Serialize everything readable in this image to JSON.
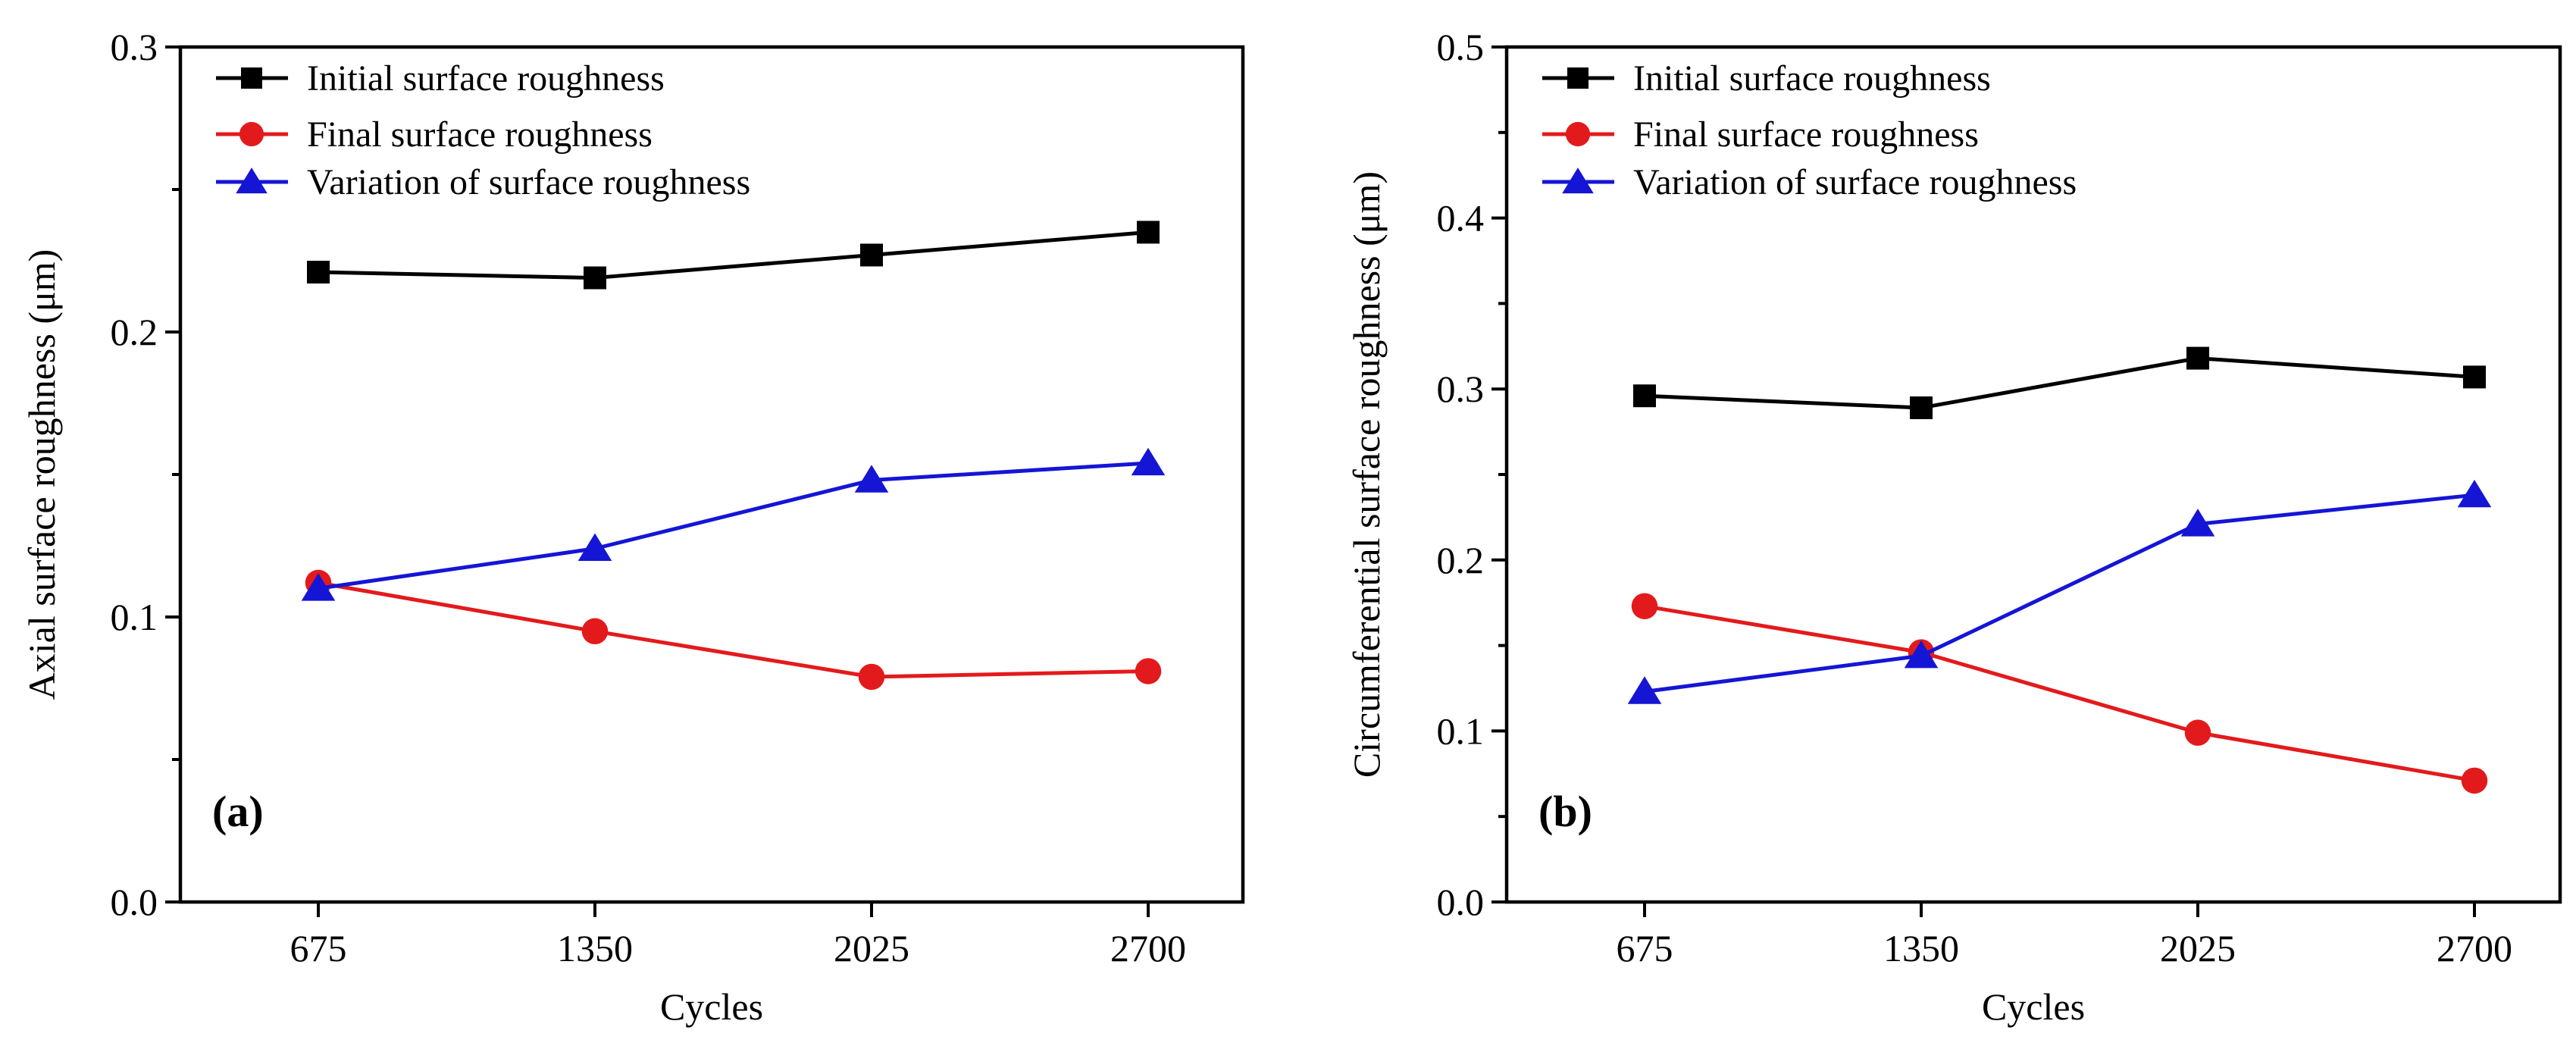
{
  "chart_data": [
    {
      "type": "line",
      "panel_label": "(a)",
      "title": "",
      "xlabel": "Cycles",
      "ylabel": "Axial surface roughness (μm)",
      "categories": [
        "675",
        "1350",
        "2025",
        "2700"
      ],
      "ylim": [
        0,
        0.3
      ],
      "yticks": [
        "0.0",
        "0.1",
        "0.2",
        "0.3"
      ],
      "legend_position": "top-left",
      "series": [
        {
          "name": "Initial surface roughness",
          "color": "#000000",
          "marker": "square",
          "values": [
            0.221,
            0.219,
            0.227,
            0.235
          ]
        },
        {
          "name": "Final surface roughness",
          "color": "#e31a1c",
          "marker": "circle",
          "values": [
            0.112,
            0.095,
            0.079,
            0.081
          ]
        },
        {
          "name": "Variation of surface roughness",
          "color": "#1515d6",
          "marker": "triangle",
          "values": [
            0.11,
            0.124,
            0.148,
            0.154
          ]
        }
      ]
    },
    {
      "type": "line",
      "panel_label": "(b)",
      "title": "",
      "xlabel": "Cycles",
      "ylabel": "Circumferential surface roughness (μm)",
      "categories": [
        "675",
        "1350",
        "2025",
        "2700"
      ],
      "ylim": [
        0,
        0.5
      ],
      "yticks": [
        "0.0",
        "0.1",
        "0.2",
        "0.3",
        "0.4",
        "0.5"
      ],
      "legend_position": "top-left",
      "series": [
        {
          "name": "Initial surface roughness",
          "color": "#000000",
          "marker": "square",
          "values": [
            0.296,
            0.289,
            0.318,
            0.307
          ]
        },
        {
          "name": "Final surface roughness",
          "color": "#e31a1c",
          "marker": "circle",
          "values": [
            0.173,
            0.146,
            0.099,
            0.071
          ]
        },
        {
          "name": "Variation of surface roughness",
          "color": "#1515d6",
          "marker": "triangle",
          "values": [
            0.123,
            0.144,
            0.221,
            0.238
          ]
        }
      ]
    }
  ]
}
